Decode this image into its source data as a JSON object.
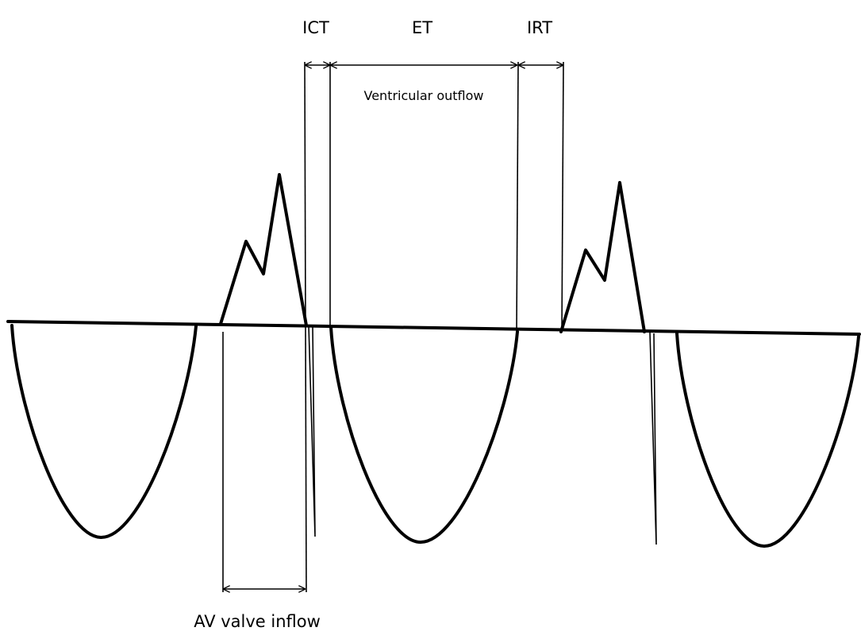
{
  "intervals": {
    "ict": "ICT",
    "et": "ET",
    "irt": "IRT"
  },
  "annotations": {
    "ventricular_outflow": "Ventricular outflow",
    "av_valve_inflow": "AV valve inflow"
  }
}
